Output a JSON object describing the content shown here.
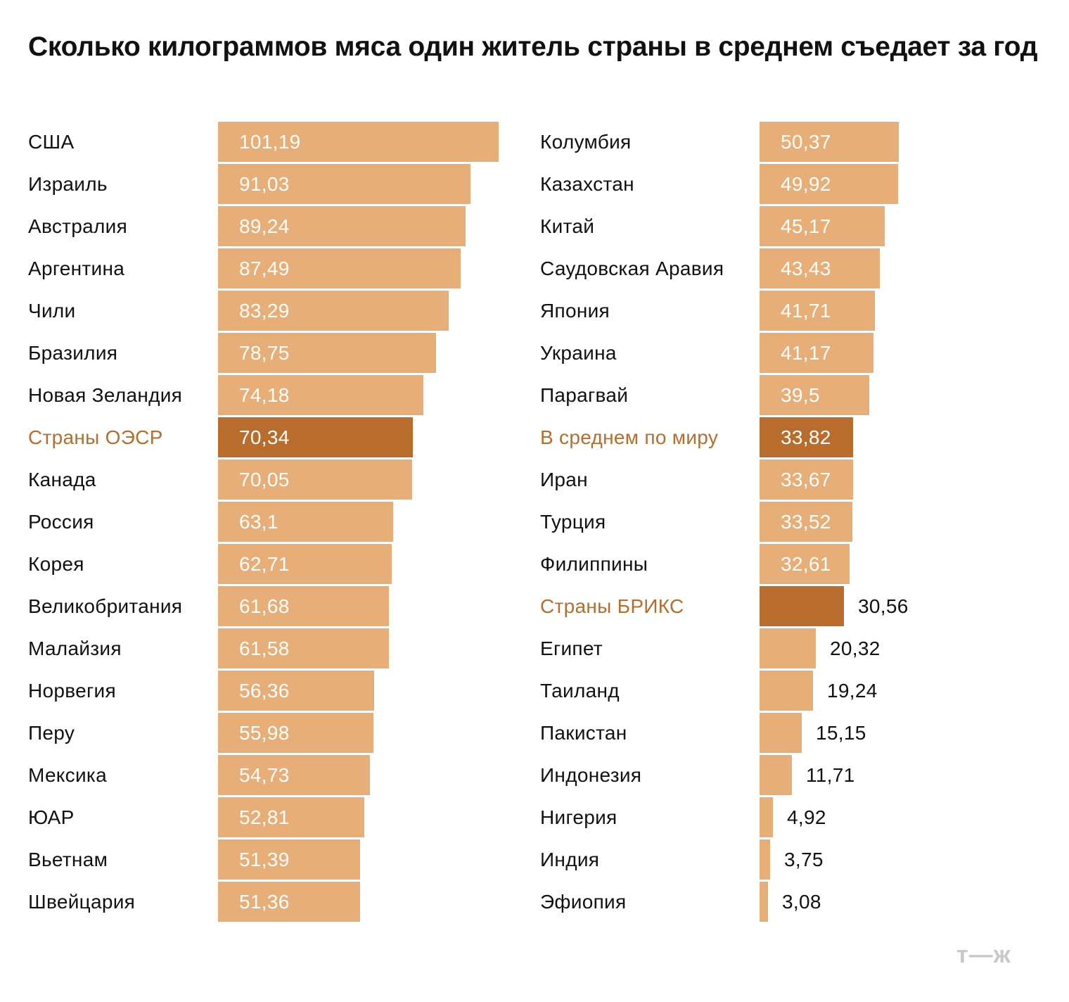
{
  "logo": "т—ж",
  "chart_data": {
    "type": "bar",
    "orientation": "horizontal",
    "title": "Сколько килограммов мяса один житель страны в среднем съедает за год",
    "highlight_color": "#b96d2c",
    "bar_color": "#e8ae78",
    "panels": [
      {
        "categories": [
          "США",
          "Израиль",
          "Австралия",
          "Аргентина",
          "Чили",
          "Бразилия",
          "Новая Зеландия",
          "Страны ОЭСР",
          "Канада",
          "Россия",
          "Корея",
          "Великобритания",
          "Малайзия",
          "Норвегия",
          "Перу",
          "Мексика",
          "ЮАР",
          "Вьетнам",
          "Швейцария"
        ],
        "values": [
          101.19,
          91.03,
          89.24,
          87.49,
          83.29,
          78.75,
          74.18,
          70.34,
          70.05,
          63.1,
          62.71,
          61.68,
          61.58,
          56.36,
          55.98,
          54.73,
          52.81,
          51.39,
          51.36
        ],
        "value_labels": [
          "101,19",
          "91,03",
          "89,24",
          "87,49",
          "83,29",
          "78,75",
          "74,18",
          "70,34",
          "70,05",
          "63,1",
          "62,71",
          "61,68",
          "61,58",
          "56,36",
          "55,98",
          "54,73",
          "52,81",
          "51,39",
          "51,36"
        ],
        "highlighted": [
          "Страны ОЭСР"
        ]
      },
      {
        "categories": [
          "Колумбия",
          "Казахстан",
          "Китай",
          "Саудовская Аравия",
          "Япония",
          "Украина",
          "Парагвай",
          "В среднем по миру",
          "Иран",
          "Турция",
          "Филиппины",
          "Страны БРИКС",
          "Египет",
          "Таиланд",
          "Пакистан",
          "Индонезия",
          "Нигерия",
          "Индия",
          "Эфиопия"
        ],
        "values": [
          50.37,
          49.92,
          45.17,
          43.43,
          41.71,
          41.17,
          39.5,
          33.82,
          33.67,
          33.52,
          32.61,
          30.56,
          20.32,
          19.24,
          15.15,
          11.71,
          4.92,
          3.75,
          3.08
        ],
        "value_labels": [
          "50,37",
          "49,92",
          "45,17",
          "43,43",
          "41,71",
          "41,17",
          "39,5",
          "33,82",
          "33,67",
          "33,52",
          "32,61",
          "30,56",
          "20,32",
          "19,24",
          "15,15",
          "11,71",
          "4,92",
          "3,75",
          "3,08"
        ],
        "highlighted": [
          "В среднем по миру",
          "Страны БРИКС"
        ]
      }
    ]
  }
}
